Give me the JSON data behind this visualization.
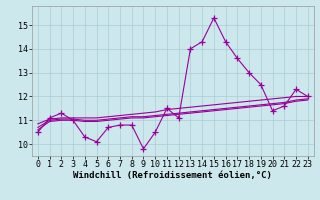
{
  "xlabel": "Windchill (Refroidissement éolien,°C)",
  "background_color": "#cce8ec",
  "line_color": "#990099",
  "grid_color": "#aaccd4",
  "hours": [
    0,
    1,
    2,
    3,
    4,
    5,
    6,
    7,
    8,
    9,
    10,
    11,
    12,
    13,
    14,
    15,
    16,
    17,
    18,
    19,
    20,
    21,
    22,
    23
  ],
  "y_main": [
    10.5,
    11.1,
    11.3,
    11.0,
    10.3,
    10.1,
    10.7,
    10.8,
    10.8,
    9.8,
    10.5,
    11.5,
    11.1,
    14.0,
    14.3,
    15.3,
    14.3,
    13.6,
    13.0,
    12.5,
    11.4,
    11.6,
    12.3,
    12.0
  ],
  "y_avg1": [
    10.85,
    11.05,
    11.1,
    11.1,
    11.1,
    11.1,
    11.15,
    11.2,
    11.25,
    11.3,
    11.35,
    11.45,
    11.5,
    11.55,
    11.6,
    11.65,
    11.7,
    11.75,
    11.8,
    11.85,
    11.9,
    11.95,
    12.0,
    12.0
  ],
  "y_avg2": [
    10.7,
    11.0,
    11.05,
    11.05,
    11.0,
    11.0,
    11.05,
    11.1,
    11.15,
    11.15,
    11.2,
    11.25,
    11.3,
    11.35,
    11.4,
    11.45,
    11.5,
    11.55,
    11.6,
    11.65,
    11.7,
    11.75,
    11.85,
    11.9
  ],
  "y_avg3": [
    10.6,
    10.95,
    11.0,
    11.0,
    10.95,
    10.95,
    11.0,
    11.05,
    11.1,
    11.1,
    11.15,
    11.2,
    11.25,
    11.3,
    11.35,
    11.4,
    11.45,
    11.5,
    11.55,
    11.6,
    11.65,
    11.7,
    11.8,
    11.85
  ],
  "ylim": [
    9.5,
    15.8
  ],
  "yticks": [
    10,
    11,
    12,
    13,
    14,
    15
  ],
  "xticks": [
    0,
    1,
    2,
    3,
    4,
    5,
    6,
    7,
    8,
    9,
    10,
    11,
    12,
    13,
    14,
    15,
    16,
    17,
    18,
    19,
    20,
    21,
    22,
    23
  ],
  "marker": "+",
  "markersize": 4,
  "linewidth": 0.8,
  "xlabel_fontsize": 6.5,
  "tick_fontsize": 6.0
}
